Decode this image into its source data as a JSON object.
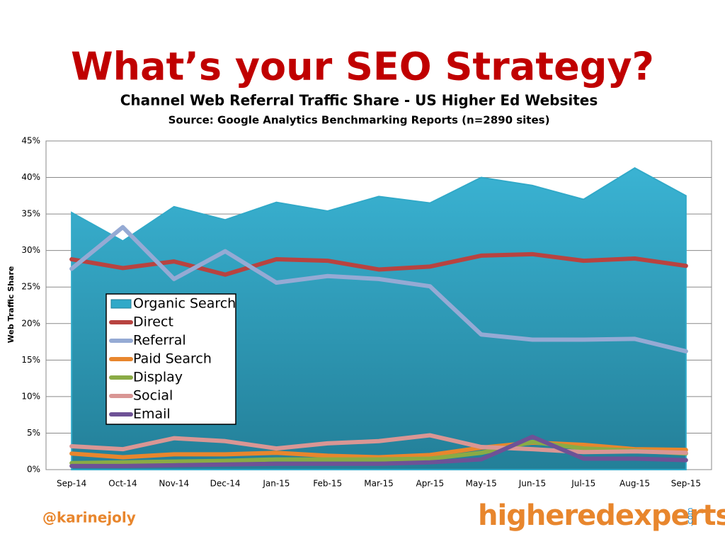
{
  "chart_data": {
    "type": "line",
    "title": "What’s your SEO Strategy?",
    "subtitle": "Channel Web Referral Traffic Share - US Higher Ed Websites",
    "source": "Source: Google Analytics Benchmarking Reports (n=2890 sites)",
    "y_label": "Web Traffic Share",
    "categories": [
      "Sep-14",
      "Oct-14",
      "Nov-14",
      "Dec-14",
      "Jan-15",
      "Feb-15",
      "Mar-15",
      "Apr-15",
      "May-15",
      "Jun-15",
      "Jul-15",
      "Aug-15",
      "Sep-15"
    ],
    "ylim": [
      0,
      45
    ],
    "yticks": [
      {
        "value": 0,
        "label": "0%"
      },
      {
        "value": 5,
        "label": "5%"
      },
      {
        "value": 10,
        "label": "10%"
      },
      {
        "value": 15,
        "label": "15%"
      },
      {
        "value": 20,
        "label": "20%"
      },
      {
        "value": 25,
        "label": "25%"
      },
      {
        "value": 30,
        "label": "30%"
      },
      {
        "value": 35,
        "label": "35%"
      },
      {
        "value": 40,
        "label": "40%"
      },
      {
        "value": 45,
        "label": "45%"
      }
    ],
    "grid": true,
    "series": [
      {
        "name": "Organic Search",
        "type": "area",
        "color": "#31a9c8",
        "values": [
          35.2,
          31.3,
          36.0,
          34.2,
          36.6,
          35.4,
          37.4,
          36.5,
          40.0,
          38.9,
          37.0,
          41.3,
          37.5
        ]
      },
      {
        "name": "Direct",
        "color": "#b84340",
        "values": [
          28.8,
          27.6,
          28.5,
          26.7,
          28.8,
          28.6,
          27.4,
          27.8,
          29.3,
          29.5,
          28.6,
          28.9,
          27.9
        ]
      },
      {
        "name": "Referral",
        "color": "#95aad4",
        "values": [
          27.5,
          33.2,
          26.1,
          29.9,
          25.6,
          26.5,
          26.1,
          25.1,
          18.5,
          17.8,
          17.8,
          17.9,
          16.2
        ]
      },
      {
        "name": "Paid Search",
        "color": "#e8862d",
        "values": [
          2.2,
          1.7,
          2.1,
          2.1,
          2.3,
          1.9,
          1.7,
          2.0,
          3.0,
          3.7,
          3.4,
          2.8,
          2.7
        ]
      },
      {
        "name": "Display",
        "color": "#8aab45",
        "values": [
          0.9,
          1.0,
          1.1,
          1.2,
          1.4,
          1.4,
          1.4,
          1.5,
          2.3,
          3.8,
          2.9,
          2.6,
          2.2
        ]
      },
      {
        "name": "Social",
        "color": "#d99694",
        "values": [
          3.2,
          2.8,
          4.3,
          3.9,
          2.9,
          3.6,
          3.9,
          4.7,
          3.1,
          2.8,
          2.4,
          2.5,
          2.3
        ]
      },
      {
        "name": "Email",
        "color": "#6e5296",
        "values": [
          0.5,
          0.5,
          0.6,
          0.7,
          0.8,
          0.8,
          0.8,
          1.0,
          1.4,
          4.5,
          1.5,
          1.5,
          1.3
        ]
      }
    ]
  },
  "footer": {
    "handle": "@karinejoly",
    "logo": "higheredexperts",
    "logo_suffix": ".com"
  }
}
